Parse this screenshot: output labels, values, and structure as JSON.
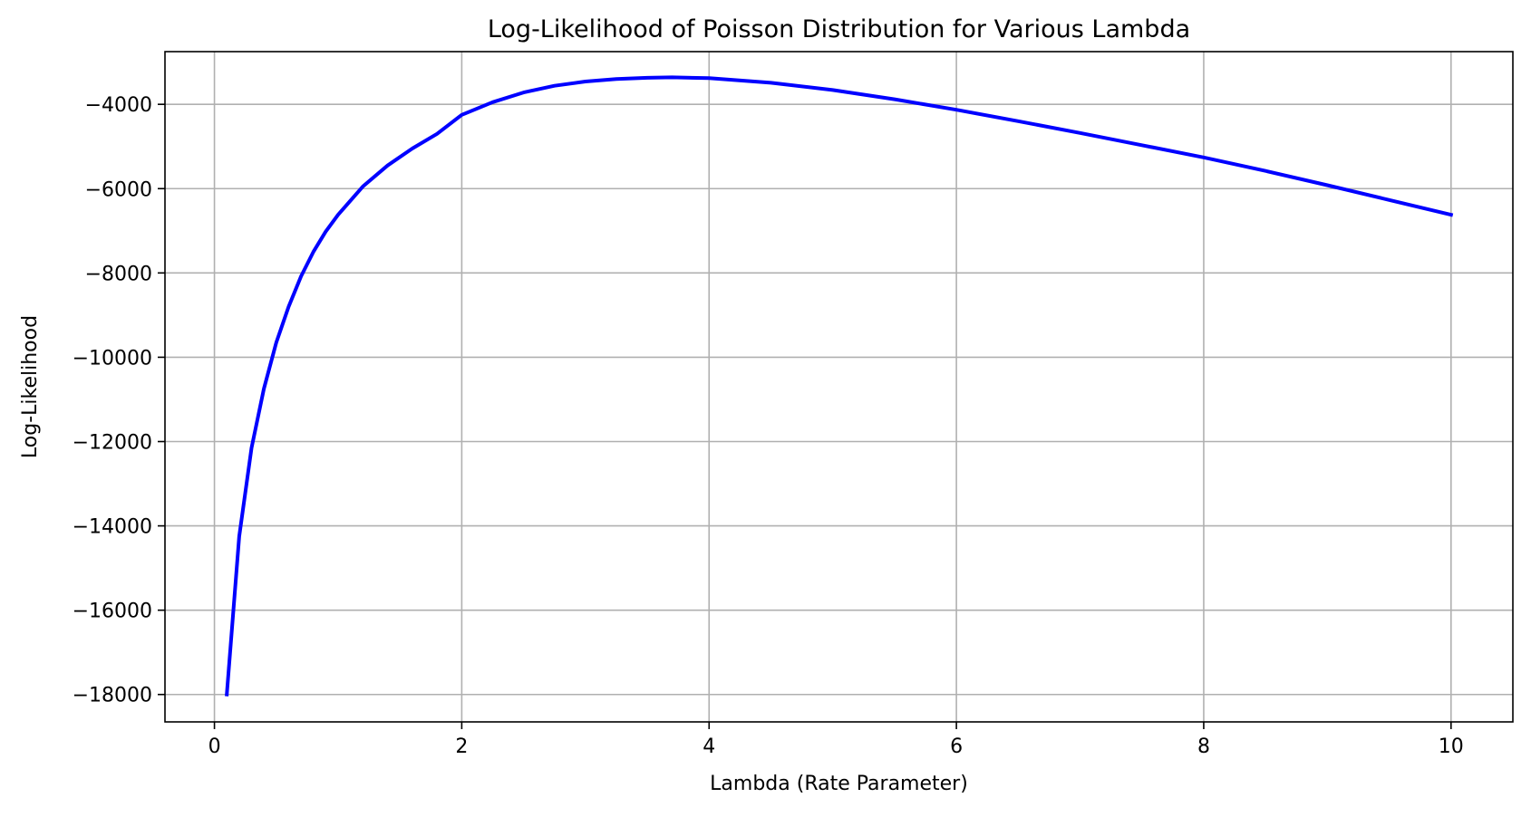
{
  "chart_data": {
    "type": "line",
    "title": "Log-Likelihood of Poisson Distribution for Various Lambda",
    "xlabel": "Lambda (Rate Parameter)",
    "ylabel": "Log-Likelihood",
    "xlim": [
      -0.4,
      10.5
    ],
    "ylim": [
      -18650,
      -2750
    ],
    "xticks": [
      0,
      2,
      4,
      6,
      8,
      10
    ],
    "xtick_labels": [
      "0",
      "2",
      "4",
      "6",
      "8",
      "10"
    ],
    "yticks": [
      -4000,
      -6000,
      -8000,
      -10000,
      -12000,
      -14000,
      -16000,
      -18000
    ],
    "ytick_labels": [
      "−4000",
      "−6000",
      "−8000",
      "−10000",
      "−12000",
      "−14000",
      "−16000",
      "−18000"
    ],
    "grid": true,
    "legend": "none",
    "series": [
      {
        "color": "#0000ff",
        "x": [
          0.1,
          0.2,
          0.3,
          0.4,
          0.5,
          0.6,
          0.7,
          0.8,
          0.9,
          1.0,
          1.2,
          1.4,
          1.6,
          1.8,
          2.0,
          2.25,
          2.5,
          2.75,
          3.0,
          3.25,
          3.5,
          3.7,
          4.0,
          4.5,
          5.0,
          5.5,
          6.0,
          6.5,
          7.0,
          7.5,
          8.0,
          8.5,
          9.0,
          9.5,
          10.0
        ],
        "y": [
          -18000,
          -14250,
          -12150,
          -10750,
          -9650,
          -8800,
          -8080,
          -7500,
          -7020,
          -6620,
          -5950,
          -5450,
          -5050,
          -4700,
          -4250,
          -3950,
          -3720,
          -3560,
          -3460,
          -3400,
          -3370,
          -3360,
          -3380,
          -3490,
          -3660,
          -3880,
          -4130,
          -4400,
          -4680,
          -4970,
          -5260,
          -5580,
          -5920,
          -6270,
          -6620
        ]
      }
    ]
  }
}
